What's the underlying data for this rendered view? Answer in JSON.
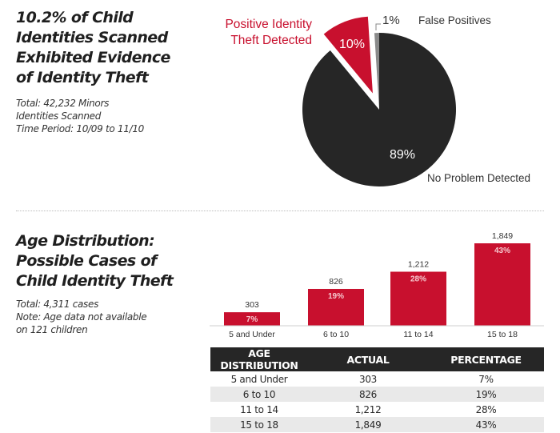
{
  "section1": {
    "heading": "10.2% of Child\nIdentities Scanned\nExhibited Evidence\nof Identity Theft",
    "subtext": "Total: 42,232 Minors\nIdentities Scanned\nTime Period: 10/09 to 11/10"
  },
  "section2": {
    "heading": "Age Distribution:\nPossible Cases of\nChild Identity Theft",
    "subtext": "Total: 4,311 cases\nNote: Age data not available\non 121 children"
  },
  "colors": {
    "red": "#c8102e",
    "dark": "#262626",
    "grey": "#8a8a8a"
  },
  "chart_data": [
    {
      "type": "pie",
      "title": "",
      "slices": [
        {
          "label": "No Problem Detected",
          "value": 89,
          "display": "89%",
          "color": "#262626",
          "exploded": false
        },
        {
          "label": "Positive Identity Theft Detected",
          "value": 10,
          "display": "10%",
          "color": "#c8102e",
          "exploded": true
        },
        {
          "label": "False Positives",
          "value": 1,
          "display": "1%",
          "color": "#8a8a8a",
          "exploded": false
        }
      ],
      "labels": {
        "positive_line1": "Positive Identity",
        "positive_line2": "Theft Detected",
        "false_pct": "1%",
        "false_label": "False Positives",
        "no_problem": "No Problem Detected"
      }
    },
    {
      "type": "bar",
      "title": "",
      "xlabel": "",
      "ylabel": "",
      "categories": [
        "5 and Under",
        "6 to 10",
        "11 to 14",
        "15 to 18"
      ],
      "values": [
        303,
        826,
        1212,
        1849
      ],
      "value_labels": [
        "303",
        "826",
        "1,212",
        "1,849"
      ],
      "percent_labels": [
        "7%",
        "19%",
        "28%",
        "43%"
      ],
      "ylim": [
        0,
        2000
      ],
      "grid": false,
      "color": "#c8102e"
    },
    {
      "type": "table",
      "columns": [
        "AGE DISTRIBUTION",
        "ACTUAL",
        "PERCENTAGE"
      ],
      "rows": [
        [
          "5 and Under",
          "303",
          "7%"
        ],
        [
          "6 to 10",
          "826",
          "19%"
        ],
        [
          "11 to 14",
          "1,212",
          "28%"
        ],
        [
          "15 to 18",
          "1,849",
          "43%"
        ]
      ]
    }
  ]
}
